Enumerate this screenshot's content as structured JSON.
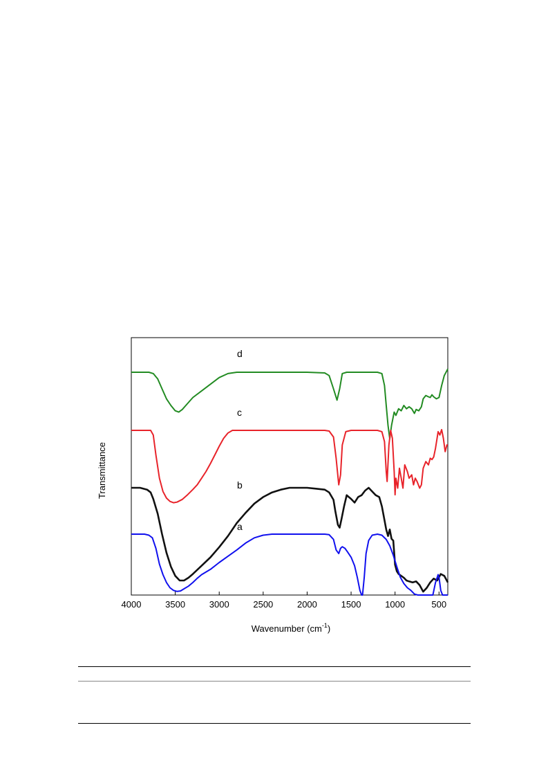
{
  "chart_data": {
    "type": "line",
    "xlabel": "Wavenumber (cm",
    "xlabel_sup": "-1",
    "xlabel_close": ")",
    "ylabel": "Transmittance",
    "xlim": [
      4000,
      400
    ],
    "x_reversed": true,
    "ticks": [
      4000,
      3500,
      3000,
      2500,
      2000,
      1500,
      1000,
      500
    ],
    "grid": false,
    "legend": "none",
    "series": [
      {
        "name": "d",
        "color": "#228B22",
        "x": [
          4000,
          3800,
          3750,
          3700,
          3650,
          3600,
          3550,
          3500,
          3460,
          3420,
          3380,
          3300,
          3200,
          3100,
          3000,
          2900,
          2800,
          2000,
          1800,
          1750,
          1700,
          1660,
          1630,
          1600,
          1550,
          1500,
          1200,
          1150,
          1120,
          1100,
          1080,
          1060,
          1040,
          1010,
          990,
          960,
          930,
          900,
          870,
          840,
          810,
          780,
          760,
          730,
          700,
          680,
          650,
          620,
          600,
          580,
          560,
          530,
          500,
          470,
          440,
          400
        ],
        "y": [
          0.5,
          0.5,
          0.48,
          0.4,
          0.25,
          0.1,
          0.0,
          -0.08,
          -0.1,
          -0.06,
          0.0,
          0.12,
          0.22,
          0.32,
          0.42,
          0.48,
          0.5,
          0.5,
          0.49,
          0.45,
          0.25,
          0.08,
          0.25,
          0.48,
          0.5,
          0.5,
          0.5,
          0.48,
          0.3,
          0.0,
          -0.3,
          -0.5,
          -0.3,
          -0.1,
          -0.15,
          -0.05,
          -0.08,
          0.0,
          -0.05,
          -0.02,
          -0.05,
          -0.12,
          -0.06,
          -0.08,
          -0.02,
          0.1,
          0.15,
          0.13,
          0.12,
          0.16,
          0.13,
          0.1,
          0.12,
          0.3,
          0.45,
          0.55
        ]
      },
      {
        "name": "c",
        "color": "#e8232a",
        "x": [
          4000,
          3780,
          3750,
          3720,
          3680,
          3640,
          3600,
          3560,
          3520,
          3480,
          3420,
          3360,
          3300,
          3250,
          3200,
          3150,
          3100,
          3050,
          3000,
          2950,
          2900,
          2850,
          2000,
          1800,
          1750,
          1700,
          1670,
          1640,
          1620,
          1600,
          1560,
          1500,
          1200,
          1150,
          1120,
          1100,
          1090,
          1070,
          1050,
          1030,
          1010,
          1000,
          990,
          970,
          950,
          930,
          910,
          890,
          860,
          840,
          810,
          790,
          770,
          750,
          720,
          700,
          680,
          650,
          620,
          600,
          580,
          560,
          540,
          510,
          490,
          470,
          450,
          430,
          410,
          400
        ],
        "y": [
          0.82,
          0.82,
          0.75,
          0.45,
          0.1,
          -0.1,
          -0.2,
          -0.25,
          -0.27,
          -0.26,
          -0.22,
          -0.15,
          -0.07,
          0.0,
          0.1,
          0.2,
          0.32,
          0.45,
          0.58,
          0.7,
          0.78,
          0.82,
          0.82,
          0.82,
          0.81,
          0.72,
          0.4,
          0.0,
          0.15,
          0.6,
          0.8,
          0.82,
          0.82,
          0.8,
          0.65,
          0.2,
          0.05,
          0.6,
          0.82,
          0.7,
          0.2,
          -0.15,
          0.1,
          -0.05,
          0.25,
          0.1,
          -0.05,
          0.3,
          0.2,
          0.1,
          0.15,
          0.0,
          0.1,
          0.05,
          -0.05,
          0.0,
          0.25,
          0.35,
          0.3,
          0.4,
          0.38,
          0.42,
          0.55,
          0.8,
          0.75,
          0.83,
          0.7,
          0.5,
          0.6,
          0.6
        ]
      },
      {
        "name": "b",
        "color": "#111111",
        "x": [
          4000,
          3900,
          3820,
          3780,
          3750,
          3700,
          3650,
          3600,
          3550,
          3500,
          3450,
          3400,
          3350,
          3300,
          3200,
          3100,
          3000,
          2900,
          2800,
          2700,
          2600,
          2500,
          2400,
          2300,
          2200,
          2100,
          2000,
          1900,
          1800,
          1750,
          1700,
          1680,
          1650,
          1630,
          1610,
          1580,
          1550,
          1500,
          1460,
          1420,
          1380,
          1340,
          1300,
          1260,
          1220,
          1180,
          1150,
          1120,
          1100,
          1080,
          1060,
          1040,
          1020,
          1000,
          980,
          960,
          930,
          900,
          870,
          840,
          800,
          760,
          720,
          680,
          640,
          600,
          560,
          520,
          480,
          440,
          400
        ],
        "y": [
          0.5,
          0.5,
          0.48,
          0.45,
          0.38,
          0.22,
          0.0,
          -0.2,
          -0.35,
          -0.45,
          -0.5,
          -0.5,
          -0.47,
          -0.43,
          -0.34,
          -0.25,
          -0.14,
          -0.02,
          0.12,
          0.23,
          0.33,
          0.4,
          0.45,
          0.48,
          0.5,
          0.5,
          0.5,
          0.49,
          0.48,
          0.45,
          0.37,
          0.25,
          0.1,
          0.07,
          0.16,
          0.3,
          0.42,
          0.38,
          0.34,
          0.4,
          0.42,
          0.47,
          0.5,
          0.46,
          0.42,
          0.4,
          0.3,
          0.15,
          0.05,
          -0.02,
          0.05,
          -0.05,
          -0.07,
          -0.33,
          -0.4,
          -0.43,
          -0.45,
          -0.47,
          -0.5,
          -0.51,
          -0.52,
          -0.51,
          -0.55,
          -0.62,
          -0.58,
          -0.52,
          -0.48,
          -0.5,
          -0.43,
          -0.45,
          -0.52
        ]
      },
      {
        "name": "a",
        "color": "#1010ee",
        "x": [
          4000,
          3850,
          3800,
          3760,
          3720,
          3680,
          3640,
          3600,
          3560,
          3520,
          3480,
          3440,
          3400,
          3350,
          3300,
          3250,
          3200,
          3100,
          3000,
          2900,
          2800,
          2700,
          2600,
          2500,
          2400,
          2200,
          2000,
          1800,
          1750,
          1700,
          1670,
          1640,
          1620,
          1600,
          1570,
          1540,
          1500,
          1460,
          1430,
          1400,
          1380,
          1370,
          1350,
          1330,
          1300,
          1260,
          1200,
          1150,
          1100,
          1060,
          1020,
          980,
          940,
          900,
          860,
          820,
          780,
          740,
          700,
          660,
          630,
          600,
          570,
          540,
          510,
          500,
          480,
          460,
          440,
          420,
          400
        ],
        "y": [
          0.72,
          0.72,
          0.7,
          0.65,
          0.45,
          0.15,
          -0.05,
          -0.2,
          -0.3,
          -0.35,
          -0.37,
          -0.36,
          -0.32,
          -0.27,
          -0.2,
          -0.12,
          -0.05,
          0.05,
          0.18,
          0.3,
          0.42,
          0.55,
          0.65,
          0.7,
          0.72,
          0.72,
          0.72,
          0.72,
          0.71,
          0.62,
          0.42,
          0.35,
          0.45,
          0.48,
          0.45,
          0.38,
          0.28,
          0.12,
          -0.1,
          -0.35,
          -0.5,
          -0.45,
          -0.1,
          0.35,
          0.6,
          0.7,
          0.72,
          0.7,
          0.62,
          0.5,
          0.32,
          0.1,
          -0.1,
          -0.22,
          -0.3,
          -0.35,
          -0.42,
          -0.52,
          -0.62,
          -0.72,
          -0.74,
          -0.65,
          -0.45,
          -0.2,
          -0.05,
          -0.1,
          -0.35,
          -0.65,
          -0.95,
          -1.05,
          -1.1
        ]
      }
    ],
    "curve_labels": [
      "d",
      "c",
      "b",
      "a"
    ]
  }
}
